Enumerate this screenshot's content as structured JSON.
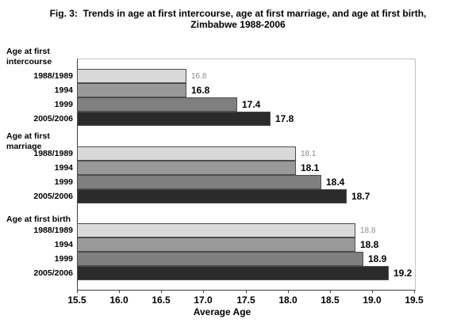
{
  "title": {
    "line1": "Fig. 3:  Trends in age at first intercourse, age at first marriage, and age at first birth,",
    "line2": "Zimbabwe 1988-2006"
  },
  "chart_data": {
    "type": "bar",
    "orientation": "horizontal",
    "xlabel": "Average Age",
    "xlim": [
      15.5,
      19.5
    ],
    "x_ticks": [
      "15.5",
      "16.0",
      "16.5",
      "17.0",
      "17.5",
      "18.0",
      "18.5",
      "19.0",
      "19.5"
    ],
    "grid": false,
    "legend": false,
    "bar_colors": [
      "#d9d9d9",
      "#999999",
      "#7f7f7f",
      "#2b2b2b"
    ],
    "muted_value_label_color": "#8c8c8c",
    "groups": [
      {
        "label": "Age at first intercourse",
        "categories": [
          "1988/1989",
          "1994",
          "1999",
          "2005/2006"
        ],
        "values": [
          16.8,
          16.8,
          17.4,
          17.8
        ],
        "value_labels": [
          "16.8",
          "16.8",
          "17.4",
          "17.8"
        ]
      },
      {
        "label": "Age at first marriage",
        "categories": [
          "1988/1989",
          "1994",
          "1999",
          "2005/2006"
        ],
        "values": [
          18.1,
          18.1,
          18.4,
          18.7
        ],
        "value_labels": [
          "18.1",
          "18.1",
          "18.4",
          "18.7"
        ]
      },
      {
        "label": "Age at first birth",
        "categories": [
          "1988/1989",
          "1994",
          "1999",
          "2005/2006"
        ],
        "values": [
          18.8,
          18.8,
          18.9,
          19.2
        ],
        "value_labels": [
          "18.8",
          "18.8",
          "18.9",
          "19.2"
        ]
      }
    ]
  }
}
